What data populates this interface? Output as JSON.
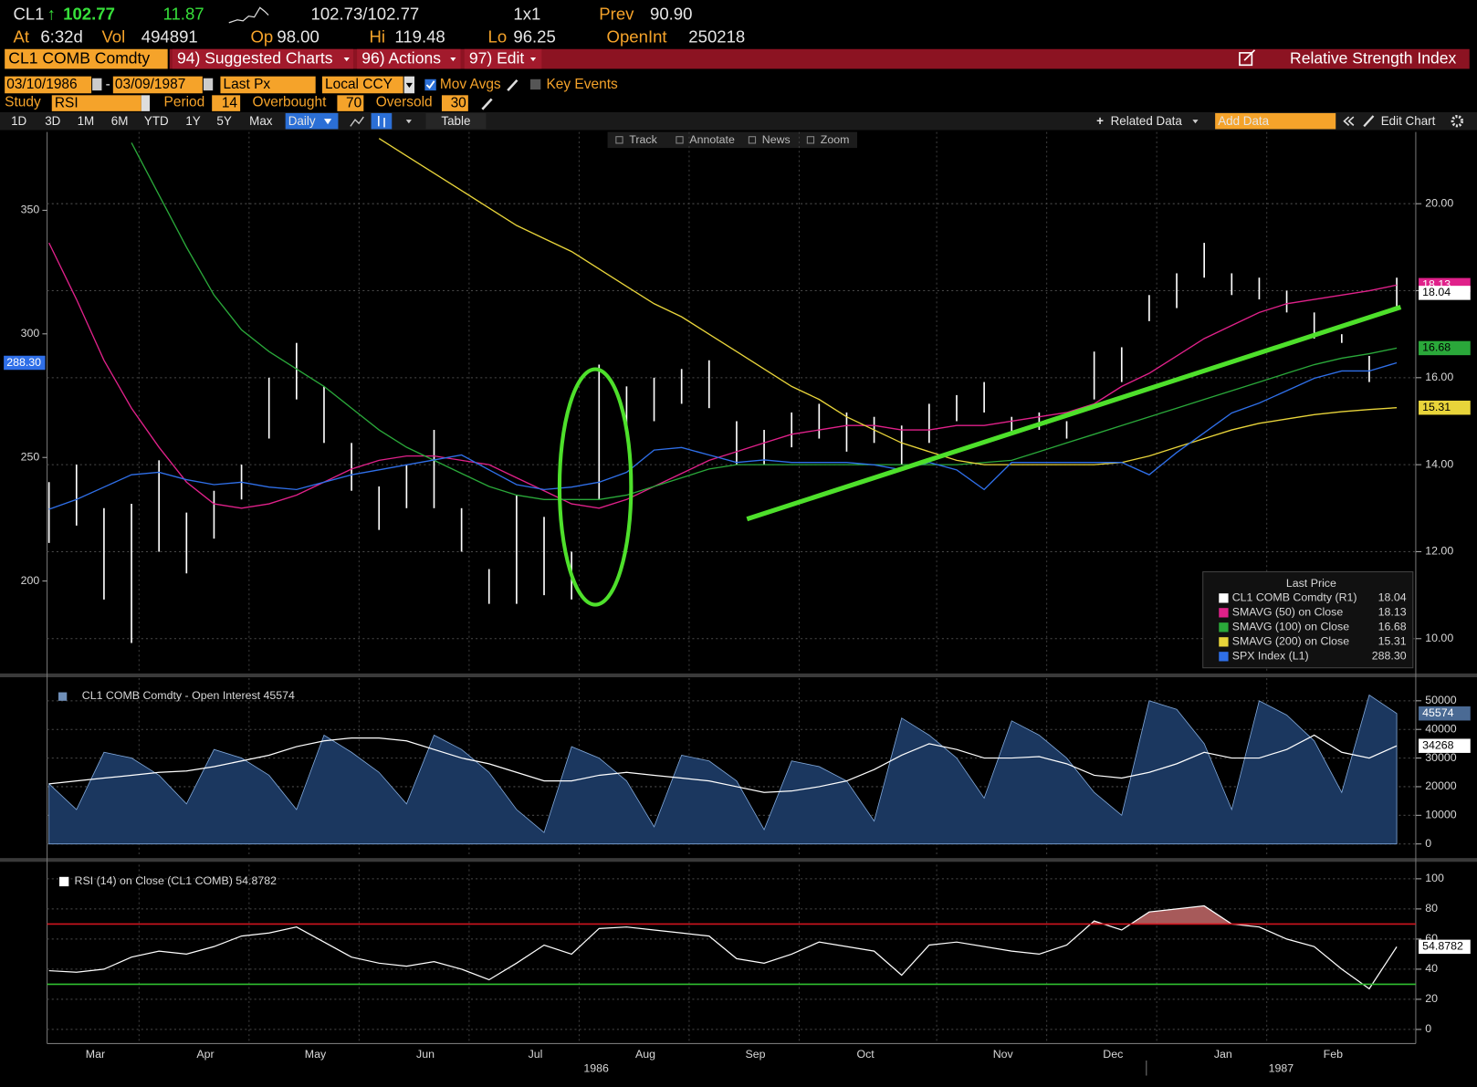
{
  "header": {
    "ticker": "CL1",
    "arrow": "↑",
    "last": "102.77",
    "change": "11.87",
    "bid_ask": "102.73/102.77",
    "size": "1x1",
    "prev_label": "Prev",
    "prev": "90.90",
    "at_label": "At",
    "time": "6:32d",
    "vol_label": "Vol",
    "vol": "494891",
    "op_label": "Op",
    "op": "98.00",
    "hi_label": "Hi",
    "hi": "119.48",
    "lo_label": "Lo",
    "lo": "96.25",
    "oi_label": "OpenInt",
    "oi": "250218"
  },
  "menu": {
    "security": "CL1 COMB Comdty",
    "suggested": "94) Suggested Charts",
    "actions": "96) Actions",
    "edit": "97) Edit",
    "title": "Relative Strength Index"
  },
  "settings": {
    "start": "03/10/1986",
    "dash": "-",
    "end": "03/09/1987",
    "field": "Last Px",
    "currency": "Local CCY",
    "mov_avgs": "Mov Avgs",
    "key_events": "Key Events",
    "study_label": "Study",
    "study": "RSI",
    "period_label": "Period",
    "overbought_label": "Overbought",
    "oversold_label": "Oversold"
  },
  "toolbar": {
    "ranges": [
      "1D",
      "3D",
      "1M",
      "6M",
      "YTD",
      "1Y",
      "5Y",
      "Max"
    ],
    "frequency": "Daily",
    "table": "Table",
    "related": "Related Data",
    "add_data": "Add Data",
    "edit_chart": "Edit Chart",
    "tools": [
      "Track",
      "Annotate",
      "News",
      "Zoom"
    ]
  },
  "chart_data": [
    {
      "type": "ohlc",
      "categories": [
        null,
        "Mar",
        null,
        null,
        null,
        "Apr",
        null,
        null,
        null,
        "May",
        null,
        null,
        null,
        "Jun",
        null,
        null,
        null,
        "Jul",
        null,
        null,
        null,
        "Aug",
        null,
        null,
        null,
        "Sep",
        null,
        null,
        null,
        "Oct",
        null,
        null,
        null,
        null,
        "Nov",
        null,
        null,
        null,
        "Dec",
        null,
        null,
        null,
        "Jan",
        null,
        null,
        null,
        "Feb",
        null,
        null,
        null
      ],
      "x_groups": [
        "1986",
        "1987"
      ],
      "ylim": [
        162.6,
        381.7
      ],
      "yticks": [
        200,
        250,
        300,
        350
      ],
      "y2lim": [
        9.2,
        21.65
      ],
      "y2ticks": [
        {
          "value": 10,
          "label": "10.00"
        },
        {
          "value": 12,
          "label": "12.00"
        },
        {
          "value": 14,
          "label": "14.00"
        },
        {
          "value": 16,
          "label": "16.00"
        },
        {
          "value": 18,
          "label": "18.00"
        },
        {
          "value": 20,
          "label": "20.00"
        }
      ],
      "grid": true,
      "legend_title": "Last Price",
      "series": [
        {
          "name": "CL1 COMB Comdty (R1)",
          "type": "bar",
          "axis": "y2",
          "color": "#ffffff",
          "last": "18.04",
          "high": [
            13.6,
            14.0,
            13.0,
            13.1,
            14.1,
            12.9,
            13.4,
            14.0,
            16.0,
            16.8,
            15.8,
            14.5,
            13.5,
            14.0,
            14.8,
            13.0,
            11.6,
            13.3,
            12.8,
            12.0,
            16.3,
            15.8,
            16.0,
            16.2,
            16.4,
            15.0,
            14.8,
            15.2,
            15.4,
            15.2,
            15.1,
            14.9,
            15.4,
            15.6,
            15.9,
            15.1,
            15.2,
            15.0,
            16.6,
            16.7,
            17.9,
            18.4,
            19.1,
            18.4,
            18.3,
            18.0,
            17.5,
            17.0,
            16.5,
            18.3
          ],
          "low": [
            12.2,
            12.6,
            10.9,
            9.9,
            12.0,
            11.5,
            12.3,
            13.2,
            14.6,
            15.5,
            14.5,
            13.4,
            12.5,
            13.0,
            13.0,
            12.0,
            10.8,
            10.8,
            11.0,
            10.9,
            13.2,
            14.8,
            15.0,
            15.4,
            15.3,
            14.0,
            14.0,
            14.4,
            14.6,
            14.3,
            14.5,
            14.0,
            14.5,
            15.0,
            15.2,
            14.7,
            14.8,
            14.6,
            15.5,
            15.9,
            17.3,
            17.6,
            18.3,
            17.9,
            17.8,
            17.5,
            16.9,
            16.8,
            15.9,
            17.6
          ]
        },
        {
          "name": "SMAVG (50) on Close",
          "type": "line",
          "axis": "y2",
          "color": "#e0218a",
          "last": "18.13",
          "values": [
            19.1,
            17.8,
            16.4,
            15.3,
            14.4,
            13.6,
            13.1,
            13.0,
            13.1,
            13.3,
            13.6,
            13.9,
            14.1,
            14.2,
            14.2,
            14.1,
            14.0,
            13.7,
            13.4,
            13.1,
            13.0,
            13.2,
            13.5,
            13.8,
            14.1,
            14.3,
            14.5,
            14.7,
            14.8,
            14.9,
            14.9,
            14.8,
            14.8,
            14.9,
            14.9,
            15.0,
            15.1,
            15.2,
            15.4,
            15.8,
            16.1,
            16.5,
            16.9,
            17.2,
            17.5,
            17.7,
            17.8,
            17.9,
            18.0,
            18.13
          ]
        },
        {
          "name": "SMAVG (100) on Close",
          "type": "line",
          "axis": "y2",
          "color": "#2aa83a",
          "last": "16.68",
          "values": [
            null,
            null,
            null,
            21.4,
            20.2,
            19.0,
            17.9,
            17.1,
            16.6,
            16.2,
            15.8,
            15.3,
            14.8,
            14.4,
            14.1,
            13.8,
            13.5,
            13.3,
            13.2,
            13.2,
            13.2,
            13.3,
            13.5,
            13.7,
            13.9,
            14.0,
            14.0,
            14.0,
            14.0,
            14.0,
            14.0,
            14.0,
            14.0,
            14.0,
            14.05,
            14.1,
            14.3,
            14.5,
            14.7,
            14.9,
            15.1,
            15.3,
            15.5,
            15.7,
            15.9,
            16.1,
            16.3,
            16.45,
            16.55,
            16.68
          ]
        },
        {
          "name": "SMAVG (200) on Close",
          "type": "line",
          "axis": "y2",
          "color": "#e8d43a",
          "last": "15.31",
          "values": [
            null,
            null,
            null,
            null,
            null,
            null,
            null,
            null,
            null,
            null,
            null,
            null,
            21.5,
            21.1,
            20.7,
            20.3,
            19.9,
            19.5,
            19.2,
            18.9,
            18.5,
            18.1,
            17.7,
            17.4,
            17.0,
            16.6,
            16.2,
            15.8,
            15.5,
            15.1,
            14.8,
            14.5,
            14.3,
            14.1,
            14.0,
            14.0,
            14.0,
            14.0,
            14.0,
            14.05,
            14.2,
            14.4,
            14.6,
            14.8,
            14.95,
            15.05,
            15.15,
            15.22,
            15.27,
            15.31
          ]
        },
        {
          "name": "SPX Index (L1)",
          "type": "line",
          "axis": "y",
          "color": "#2f6fe8",
          "last": "288.30",
          "values": [
            229,
            233,
            238,
            243,
            244,
            241,
            239,
            240,
            238,
            237,
            240,
            243,
            245,
            247,
            249,
            251,
            245,
            239,
            237,
            238,
            240,
            244,
            253,
            254,
            251,
            248,
            249,
            248,
            248,
            248,
            247,
            245,
            248,
            245,
            237,
            248,
            248,
            248,
            248,
            248,
            243,
            252,
            260,
            268,
            272,
            277,
            282,
            285,
            285,
            288.3
          ]
        }
      ]
    },
    {
      "type": "area",
      "title": "CL1 COMB Comdty - Open Interest 45574",
      "ylim": [
        -4600,
        57900
      ],
      "yticks": [
        0,
        10000,
        20000,
        30000,
        40000,
        50000
      ],
      "grid": true,
      "series": [
        {
          "name": "Open Interest",
          "color": "#1b375f",
          "values": [
            21000,
            12000,
            32000,
            30000,
            24000,
            14000,
            33000,
            30000,
            24000,
            12000,
            38000,
            32000,
            25000,
            14000,
            38000,
            33000,
            25000,
            12000,
            4000,
            34000,
            30000,
            22000,
            6000,
            31000,
            29000,
            22000,
            5000,
            29000,
            27000,
            22000,
            8000,
            44000,
            38000,
            30000,
            16000,
            43000,
            38000,
            30000,
            18000,
            10000,
            50000,
            47000,
            35000,
            12000,
            50000,
            45000,
            36000,
            18000,
            52000,
            45574
          ]
        },
        {
          "color": "#ffffff",
          "values": [
            21000,
            22000,
            23000,
            24000,
            25000,
            25500,
            27000,
            29000,
            31000,
            34000,
            36000,
            37000,
            37000,
            36000,
            33000,
            30000,
            28000,
            25000,
            22000,
            22000,
            24000,
            25000,
            24000,
            23000,
            22000,
            20000,
            18000,
            18500,
            20000,
            22000,
            26000,
            31000,
            35000,
            33000,
            30000,
            30000,
            30500,
            28000,
            24000,
            23000,
            25000,
            28000,
            32000,
            30000,
            30000,
            33000,
            38000,
            32000,
            30000,
            34268
          ]
        }
      ]
    },
    {
      "type": "line",
      "title": "RSI (14) on Close (CL1 COMB) 54.8782",
      "period": 14,
      "overbought": 70,
      "oversold": 30,
      "overbought_color": "#d0141e",
      "oversold_color": "#2fbf2f",
      "ylim": [
        -9.4,
        109.4
      ],
      "yticks": [
        0,
        20,
        40,
        60,
        80,
        100
      ],
      "grid": true,
      "series": [
        {
          "color": "#ffffff",
          "values": [
            39,
            38,
            40,
            48,
            52,
            50,
            55,
            62,
            64,
            68,
            58,
            48,
            44,
            42,
            45,
            40,
            33,
            44,
            56,
            50,
            67,
            68,
            66,
            64,
            62,
            47,
            44,
            50,
            58,
            55,
            52,
            36,
            56,
            58,
            55,
            52,
            50,
            56,
            72,
            66,
            78,
            80,
            82,
            70,
            68,
            60,
            55,
            40,
            27,
            54.8782
          ]
        }
      ]
    }
  ]
}
